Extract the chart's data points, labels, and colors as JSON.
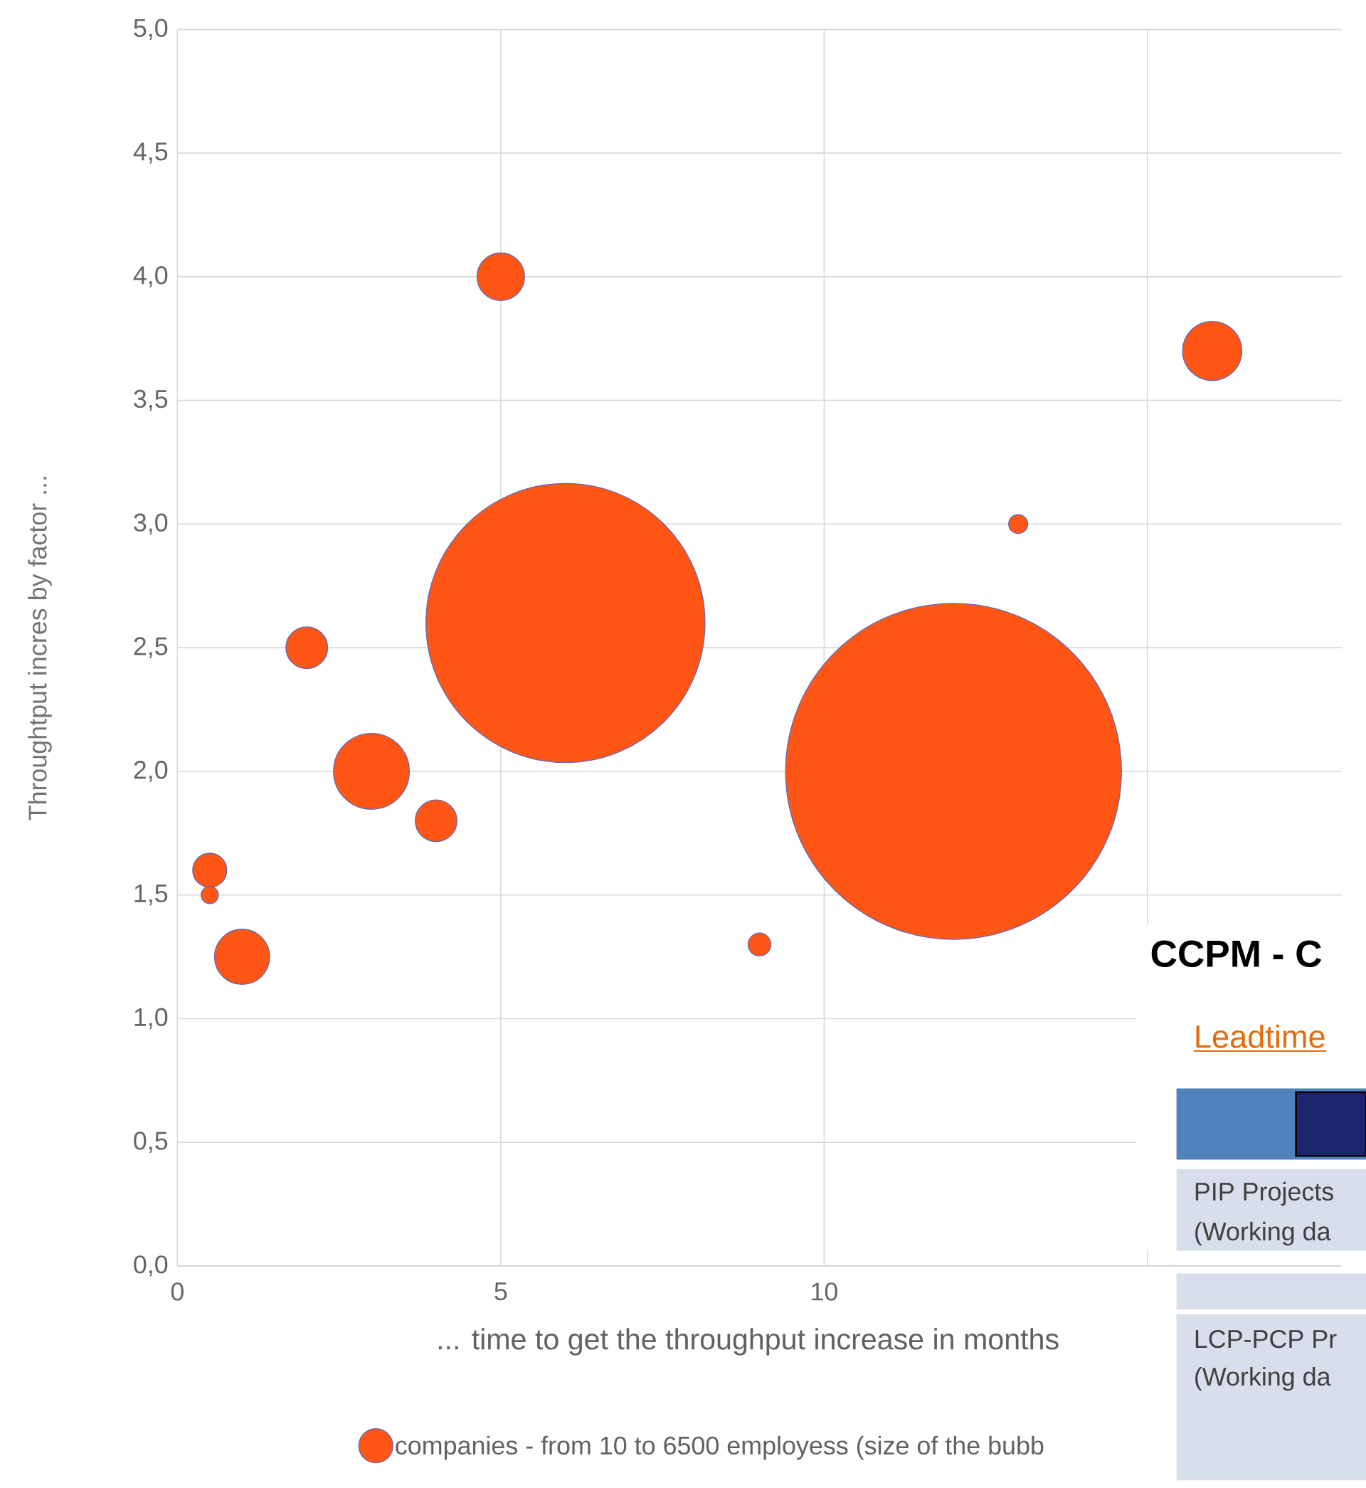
{
  "chart_data": {
    "type": "bubble",
    "xlabel": "... time to get the throughput increase in months",
    "ylabel": "Throughtput incres by factor ...",
    "x": [
      0.5,
      0.5,
      1,
      2,
      3,
      4,
      5,
      6,
      9,
      12,
      13,
      16
    ],
    "series": [
      {
        "name": "companies - from 10 to 6500 employess (size of the bubb",
        "color": "#ff5515",
        "values": [
          1.6,
          1.5,
          1.25,
          2.5,
          2.0,
          1.8,
          4.0,
          2.6,
          1.3,
          2.0,
          3.0,
          3.7
        ],
        "sizes": [
          0.0103,
          0.0026,
          0.027,
          0.0154,
          0.051,
          0.0154,
          0.02,
          0.69,
          0.0046,
          1,
          0.0032,
          0.031
        ]
      }
    ],
    "xlim": [
      0,
      18
    ],
    "ylim": [
      0,
      5
    ],
    "xticks": [
      0,
      5,
      10,
      {
        "value": 15,
        "label": null
      }
    ],
    "yticks": [
      {
        "value": 0,
        "label": "0,0"
      },
      {
        "value": 0.5,
        "label": "0,5"
      },
      {
        "value": 1,
        "label": "1,0"
      },
      {
        "value": 1.5,
        "label": "1,5"
      },
      {
        "value": 2,
        "label": "2,0"
      },
      {
        "value": 2.5,
        "label": "2,5"
      },
      {
        "value": 3,
        "label": "3,0"
      },
      {
        "value": 3.5,
        "label": "3,5"
      },
      {
        "value": 4,
        "label": "4,0"
      },
      {
        "value": 4.5,
        "label": "4,5"
      },
      {
        "value": 5,
        "label": "5,0"
      }
    ],
    "grid": true,
    "legend": "bottom",
    "annotations": [
      "CCPM - C",
      "Leadtime",
      "PIP Projects",
      "(Working da",
      "LCP-PCP Pr",
      "(Working da"
    ]
  }
}
